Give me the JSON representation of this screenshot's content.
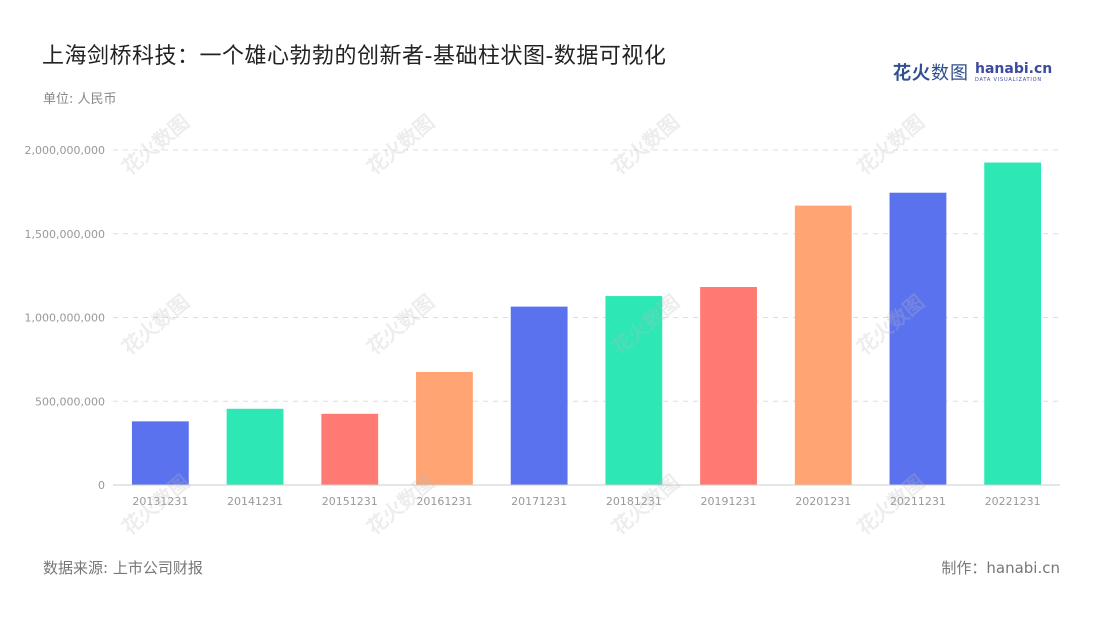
{
  "header": {
    "title": "上海剑桥科技：一个雄心勃勃的创新者-基础柱状图-数据可视化",
    "unit": "单位: 人民币"
  },
  "brand": {
    "name_cn_bold": "花火",
    "name_cn_thin": "数图",
    "name_en": "hanabi.cn",
    "tagline": "DATA VISUALIZATION"
  },
  "footer": {
    "source": "数据来源: 上市公司财报",
    "maker": "制作：hanabi.cn"
  },
  "chart_data": {
    "type": "bar",
    "categories": [
      "20131231",
      "20141231",
      "20151231",
      "20161231",
      "20171231",
      "20181231",
      "20191231",
      "20201231",
      "20211231",
      "20221231"
    ],
    "values": [
      380000000,
      455000000,
      425000000,
      675000000,
      1065000000,
      1128000000,
      1182000000,
      1668000000,
      1745000000,
      1925000000
    ],
    "colors": [
      "#5b72ee",
      "#2de8b4",
      "#ff7a72",
      "#ffa472",
      "#5b72ee",
      "#2de8b4",
      "#ff7a72",
      "#ffa472",
      "#5b72ee",
      "#2de8b4"
    ],
    "yticks": [
      "0",
      "500,000,000",
      "1,000,000,000",
      "1,500,000,000",
      "2,000,000,000"
    ],
    "ylim": [
      0,
      2000000000
    ],
    "grid": true,
    "legend": "none",
    "watermark": "花火数图"
  }
}
